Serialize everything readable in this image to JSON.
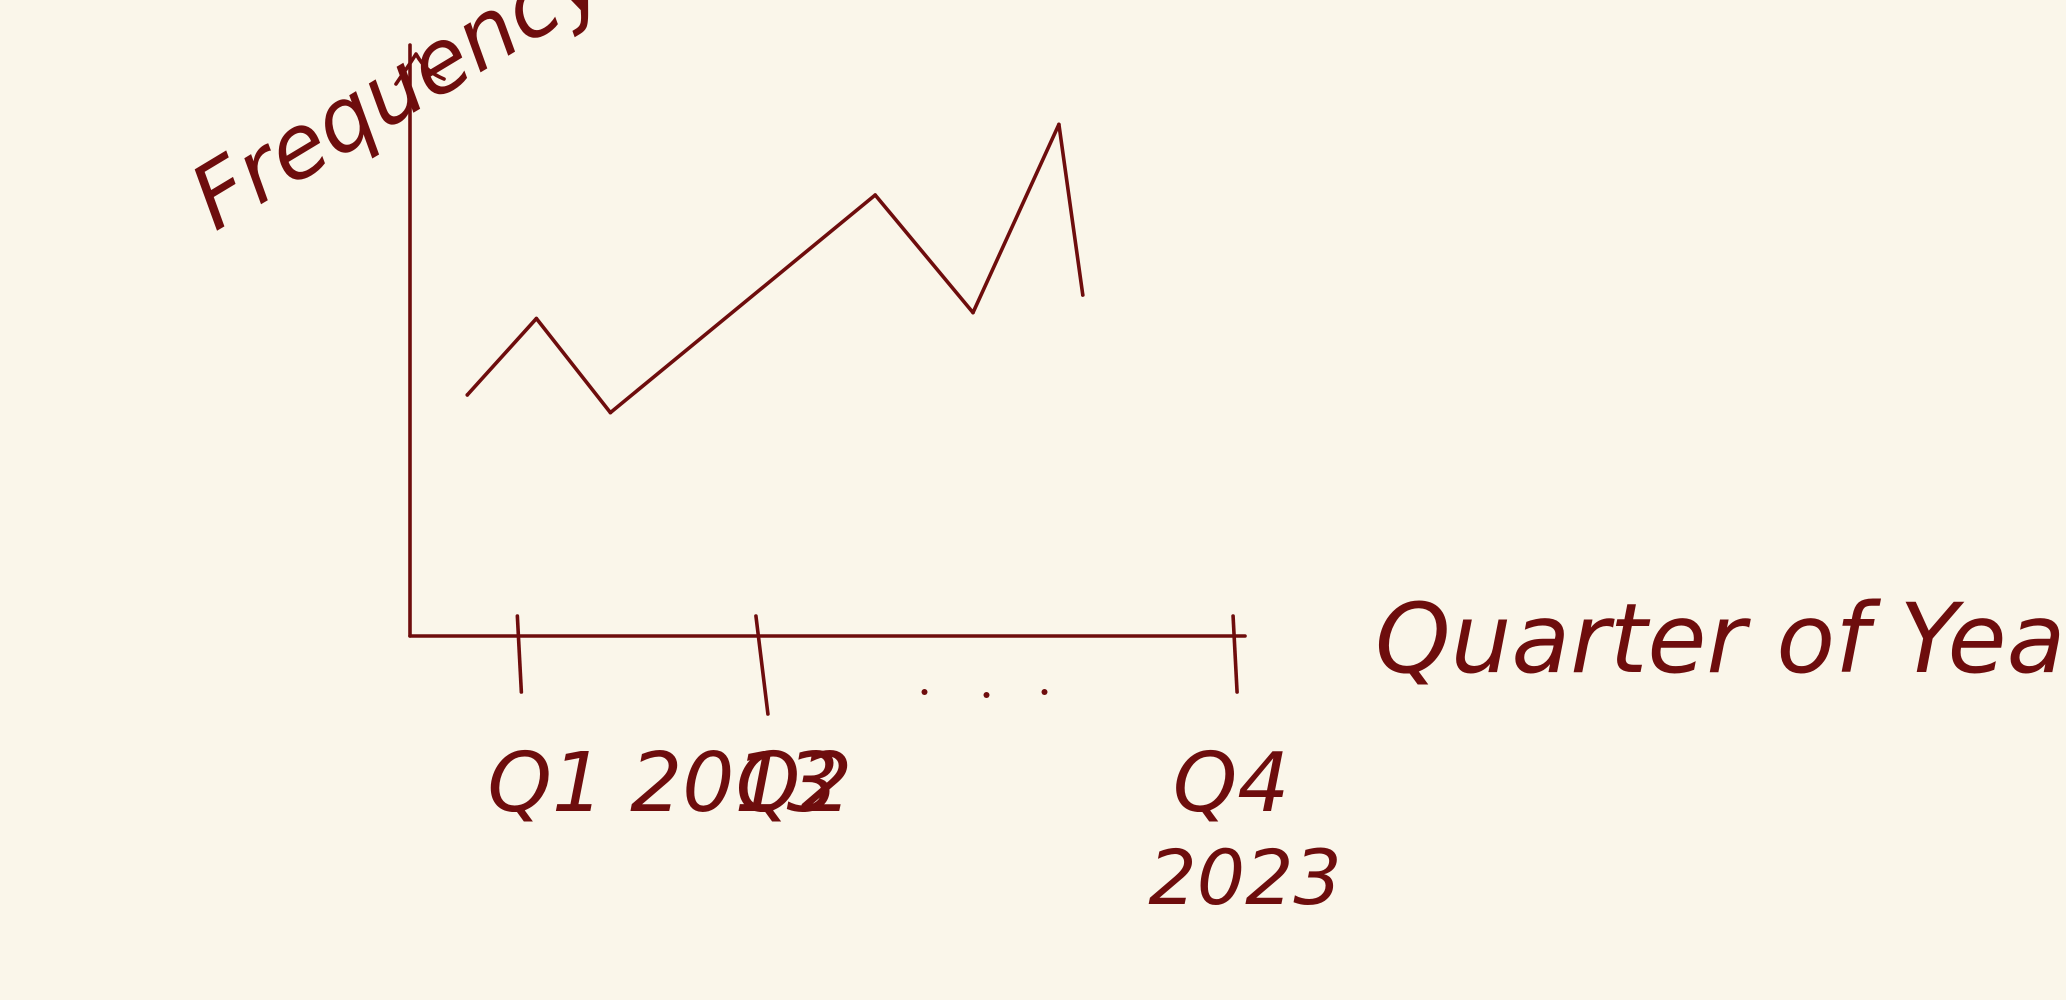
{
  "colors": {
    "background": "#faf6ea",
    "ink": "#6e0d0d"
  },
  "chart_data": {
    "type": "line",
    "style": "hand-drawn sketch",
    "xlabel": "Quarter of Year",
    "ylabel": "Frequency",
    "grid": false,
    "legend": "none",
    "x_ticks": [
      {
        "position": 0,
        "label": "Q1 2013"
      },
      {
        "position": 1,
        "label": "Q2"
      },
      {
        "position": 2,
        "label": "..."
      },
      {
        "position": 3,
        "label": "Q4",
        "label_line2": "2023"
      }
    ],
    "xlim": [
      -0.45,
      3.05
    ],
    "ylim": [
      0,
      10
    ],
    "series": [
      {
        "x": [
          -0.21,
          0.08,
          0.39,
          1.5,
          1.91,
          2.27,
          2.37
        ],
        "values": [
          4.1,
          5.4,
          3.8,
          7.5,
          5.5,
          8.7,
          5.8
        ]
      }
    ]
  }
}
